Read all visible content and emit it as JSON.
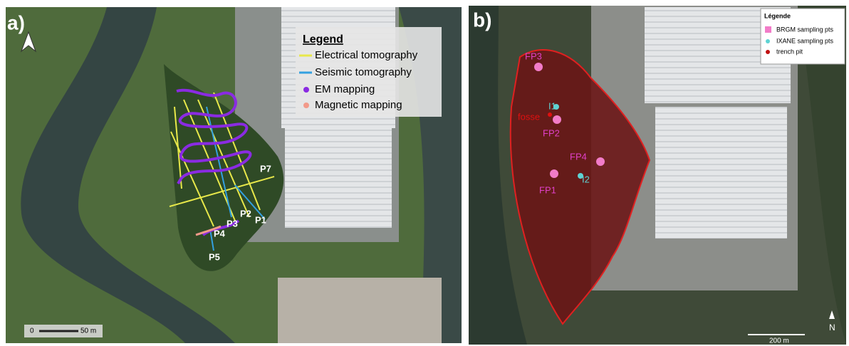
{
  "panel_a": {
    "label": "a)",
    "legend": {
      "title": "Legend",
      "items": [
        "Electrical tomography",
        "Seismic tomography",
        "EM mapping",
        "Magnetic mapping"
      ]
    },
    "profiles": [
      "P7",
      "P1",
      "P2",
      "P3",
      "P4",
      "P5"
    ],
    "scale": {
      "start": "0",
      "end": "50 m"
    }
  },
  "panel_b": {
    "label": "b)",
    "legend": {
      "title": "Légende",
      "items": [
        "BRGM sampling pts",
        "IXANE sampling pts",
        "trench pit"
      ]
    },
    "points": [
      "FP3",
      "I1",
      "fosse",
      "FP2",
      "FP4",
      "FP1",
      "I2"
    ],
    "scale": "200 m",
    "north": "N"
  }
}
